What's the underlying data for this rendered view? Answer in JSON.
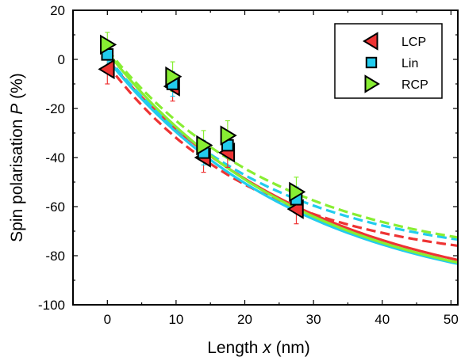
{
  "chart_data": {
    "type": "scatter",
    "xlabel": "Length",
    "xlabel_var": "x",
    "xlabel_unit": "(nm)",
    "ylabel": "Spin polarisation",
    "ylabel_var": "P",
    "ylabel_unit": "(%)",
    "xlim": [
      -5,
      51
    ],
    "ylim": [
      -100,
      20
    ],
    "x_ticks": [
      0,
      10,
      20,
      30,
      40,
      50
    ],
    "y_ticks": [
      20,
      0,
      -20,
      -40,
      -60,
      -80,
      -100
    ],
    "legend_position": "top-right",
    "series": [
      {
        "name": "LCP",
        "color": "#ee3333",
        "marker": "triangle-left",
        "points": [
          {
            "x": 0,
            "y": -4,
            "err": 6
          },
          {
            "x": 9.5,
            "y": -11,
            "err": 6
          },
          {
            "x": 14,
            "y": -40,
            "err": 6
          },
          {
            "x": 17.5,
            "y": -38,
            "err": 6
          },
          {
            "x": 27.5,
            "y": -61,
            "err": 6
          }
        ],
        "fit_solid": {
          "a": 0,
          "b": -100,
          "L": 30
        },
        "fit_dashed": {
          "a": -2,
          "b": -82,
          "L": 22
        }
      },
      {
        "name": "Lin",
        "color": "#22ccee",
        "marker": "square",
        "points": [
          {
            "x": 0,
            "y": 2,
            "err": 5
          },
          {
            "x": 9.5,
            "y": -10,
            "err": 5
          },
          {
            "x": 14,
            "y": -38,
            "err": 5
          },
          {
            "x": 17.5,
            "y": -35,
            "err": 5
          },
          {
            "x": 27.5,
            "y": -57,
            "err": 5
          }
        ],
        "fit_solid": {
          "a": 0,
          "b": -100,
          "L": 28.5
        },
        "fit_dashed": {
          "a": 1,
          "b": -84,
          "L": 23.5
        }
      },
      {
        "name": "RCP",
        "color": "#88ee33",
        "marker": "triangle-right",
        "points": [
          {
            "x": 0,
            "y": 6,
            "err": 5
          },
          {
            "x": 9.5,
            "y": -7,
            "err": 6
          },
          {
            "x": 14,
            "y": -35,
            "err": 6
          },
          {
            "x": 17.5,
            "y": -31,
            "err": 6
          },
          {
            "x": 27.5,
            "y": -54,
            "err": 6
          }
        ],
        "fit_solid": {
          "a": 3,
          "b": -103,
          "L": 28.5
        },
        "fit_dashed": {
          "a": 4,
          "b": -88,
          "L": 25
        }
      }
    ]
  }
}
